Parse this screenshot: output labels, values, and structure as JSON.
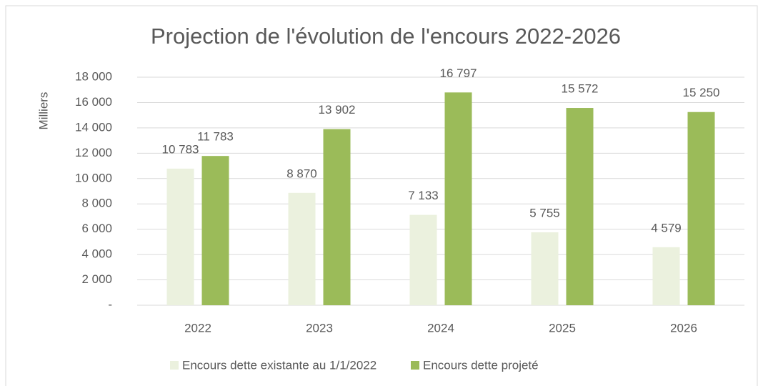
{
  "chart_data": {
    "type": "bar",
    "title": "Projection de l'évolution de l'encours 2022-2026",
    "y_label": "Milliers",
    "categories": [
      "2022",
      "2023",
      "2024",
      "2025",
      "2026"
    ],
    "series": [
      {
        "name": "Encours dette existante au 1/1/2022",
        "color": "#ebf1de",
        "values": [
          10783,
          8870,
          7133,
          5755,
          4579
        ],
        "value_labels": [
          "10 783",
          "8 870",
          "7 133",
          "5 755",
          "4 579"
        ]
      },
      {
        "name": "Encours dette projeté",
        "color": "#9bbb59",
        "values": [
          11783,
          13902,
          16797,
          15572,
          15250
        ],
        "value_labels": [
          "11 783",
          "13 902",
          "16 797",
          "15 572",
          "15 250"
        ]
      }
    ],
    "ylim": [
      0,
      18000
    ],
    "yticks": [
      {
        "value": 0,
        "label": "-"
      },
      {
        "value": 2000,
        "label": "2 000"
      },
      {
        "value": 4000,
        "label": "4 000"
      },
      {
        "value": 6000,
        "label": "6 000"
      },
      {
        "value": 8000,
        "label": "8 000"
      },
      {
        "value": 10000,
        "label": "10 000"
      },
      {
        "value": 12000,
        "label": "12 000"
      },
      {
        "value": 14000,
        "label": "14 000"
      },
      {
        "value": 16000,
        "label": "16 000"
      },
      {
        "value": 18000,
        "label": "18 000"
      }
    ],
    "grid": true,
    "legend": "bottom"
  }
}
